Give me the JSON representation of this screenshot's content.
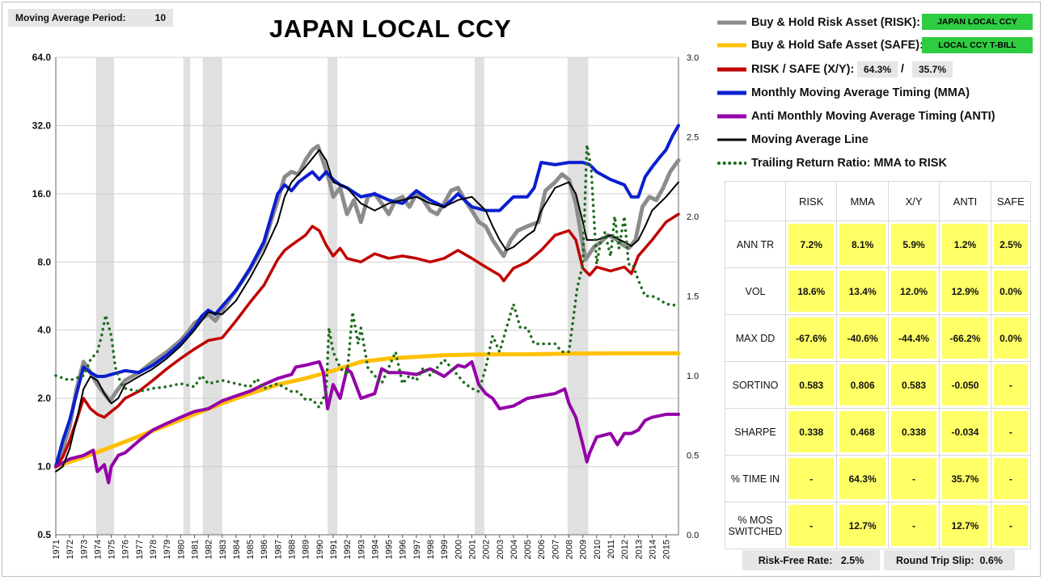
{
  "header": {
    "ma_label": "Moving Average Period:",
    "ma_value": "10",
    "title": "JAPAN LOCAL CCY"
  },
  "legend": [
    {
      "label": "Buy & Hold Risk Asset (RISK):",
      "color": "#8c8c8c",
      "style": "solid",
      "tag": "JAPAN LOCAL CCY"
    },
    {
      "label": "Buy & Hold Safe Asset (SAFE):",
      "color": "#ffc000",
      "style": "solid",
      "tag": "LOCAL CCY T-BILL"
    },
    {
      "label": "RISK / SAFE (X/Y):",
      "color": "#c00000",
      "style": "solid",
      "pct_risk": "64.3%",
      "sep": "/",
      "pct_safe": "35.7%"
    },
    {
      "label": "Monthly Moving Average Timing (MMA)",
      "color": "#0a1fcf",
      "style": "solid"
    },
    {
      "label": "Anti Monthly Moving Average Timing (ANTI)",
      "color": "#9400a8",
      "style": "solid"
    },
    {
      "label": "Moving Average Line",
      "color": "#000000",
      "style": "solid"
    },
    {
      "label": "Trailing Return Ratio: MMA to RISK",
      "color": "#1e6b1e",
      "style": "dotted"
    }
  ],
  "stats": {
    "columns": [
      "RISK",
      "MMA",
      "X/Y",
      "ANTI",
      "SAFE"
    ],
    "rows": [
      {
        "label": "ANN TR",
        "values": [
          "7.2%",
          "8.1%",
          "5.9%",
          "1.2%",
          "2.5%"
        ]
      },
      {
        "label": "VOL",
        "values": [
          "18.6%",
          "13.4%",
          "12.0%",
          "12.9%",
          "0.0%"
        ]
      },
      {
        "label": "MAX DD",
        "values": [
          "-67.6%",
          "-40.6%",
          "-44.4%",
          "-66.2%",
          "0.0%"
        ]
      },
      {
        "label": "SORTINO",
        "values": [
          "0.583",
          "0.806",
          "0.583",
          "-0.050",
          "-"
        ]
      },
      {
        "label": "SHARPE",
        "values": [
          "0.338",
          "0.468",
          "0.338",
          "-0.034",
          "-"
        ]
      },
      {
        "label": "% TIME IN",
        "values": [
          "-",
          "64.3%",
          "-",
          "35.7%",
          "-"
        ]
      },
      {
        "label": "% MOS SWITCHED",
        "values": [
          "-",
          "12.7%",
          "-",
          "12.7%",
          "-"
        ]
      }
    ]
  },
  "footer": {
    "rf_label": "Risk-Free Rate:",
    "rf_value": "2.5%",
    "slip_label": "Round Trip Slip:",
    "slip_value": "0.6%"
  },
  "chart_data": {
    "type": "line",
    "y_scale": "log2",
    "ylim": [
      0.5,
      64
    ],
    "y_ticks": [
      "0.5",
      "1.0",
      "2.0",
      "4.0",
      "8.0",
      "16.0",
      "32.0",
      "64.0"
    ],
    "y2lim": [
      0.0,
      3.0
    ],
    "y2_ticks": [
      "0.0",
      "0.5",
      "1.0",
      "1.5",
      "2.0",
      "2.5",
      "3.0"
    ],
    "x_ticks": [
      "1971",
      "1972",
      "1973",
      "1974",
      "1975",
      "1976",
      "1977",
      "1978",
      "1979",
      "1980",
      "1981",
      "1982",
      "1983",
      "1984",
      "1985",
      "1986",
      "1987",
      "1988",
      "1989",
      "1990",
      "1991",
      "1992",
      "1993",
      "1994",
      "1995",
      "1996",
      "1997",
      "1998",
      "1999",
      "2000",
      "2001",
      "2002",
      "2003",
      "2004",
      "2005",
      "2006",
      "2007",
      "2008",
      "2009",
      "2010",
      "2011",
      "2012",
      "2013",
      "2014",
      "2015"
    ],
    "xlim": [
      1971.0,
      2015.9
    ],
    "recessions": [
      [
        1973.9,
        1975.2
      ],
      [
        1980.2,
        1980.7
      ],
      [
        1981.6,
        1983.0
      ],
      [
        1990.6,
        1991.3
      ],
      [
        2001.2,
        2001.9
      ],
      [
        2007.9,
        2009.4
      ]
    ],
    "series": [
      {
        "name": "RISK",
        "color": "#8c8c8c",
        "width": 5,
        "axis": "left",
        "x": [
          1971.0,
          1971.5,
          1972.0,
          1972.5,
          1973.0,
          1973.5,
          1974.0,
          1974.5,
          1974.9,
          1975.5,
          1976.0,
          1977.0,
          1978.0,
          1979.0,
          1980.0,
          1980.5,
          1981.0,
          1982.0,
          1982.5,
          1983.0,
          1984.0,
          1985.0,
          1986.0,
          1986.5,
          1987.0,
          1987.5,
          1988.0,
          1988.5,
          1989.0,
          1989.5,
          1989.9,
          1990.3,
          1990.7,
          1991.0,
          1991.5,
          1992.0,
          1992.5,
          1993.0,
          1993.5,
          1994.0,
          1994.5,
          1995.0,
          1995.5,
          1996.0,
          1996.5,
          1997.0,
          1997.5,
          1998.0,
          1998.5,
          1999.0,
          1999.5,
          2000.0,
          2000.5,
          2001.0,
          2001.5,
          2002.0,
          2002.5,
          2003.0,
          2003.3,
          2003.8,
          2004.3,
          2005.0,
          2005.8,
          2006.3,
          2007.0,
          2007.5,
          2008.0,
          2008.5,
          2009.0,
          2009.2,
          2009.8,
          2010.3,
          2010.8,
          2011.3,
          2011.8,
          2012.3,
          2012.8,
          2013.3,
          2013.8,
          2014.3,
          2014.8,
          2015.3,
          2015.9
        ],
        "values": [
          1.0,
          1.2,
          1.5,
          2.2,
          2.9,
          2.6,
          2.3,
          2.1,
          1.95,
          2.2,
          2.4,
          2.6,
          2.9,
          3.2,
          3.6,
          3.9,
          4.3,
          4.7,
          4.4,
          4.9,
          6.0,
          7.4,
          9.5,
          12.0,
          15.0,
          19.0,
          20.0,
          19.5,
          22.5,
          25.0,
          26.0,
          22.0,
          18.5,
          15.5,
          17.0,
          13.0,
          15.0,
          12.0,
          15.5,
          16.0,
          14.5,
          13.0,
          15.0,
          15.5,
          14.0,
          16.0,
          15.0,
          13.5,
          13.0,
          14.5,
          16.5,
          17.0,
          15.0,
          13.5,
          12.0,
          11.5,
          10.0,
          9.0,
          8.5,
          10.0,
          11.0,
          11.5,
          12.0,
          16.5,
          18.0,
          19.5,
          18.5,
          14.5,
          9.5,
          8.2,
          9.3,
          9.8,
          10.5,
          10.2,
          9.6,
          9.2,
          10.0,
          14.0,
          15.5,
          15.0,
          17.0,
          20.0,
          22.5
        ]
      },
      {
        "name": "SAFE",
        "color": "#ffc000",
        "width": 5,
        "axis": "left",
        "x": [
          1971.0,
          1973.0,
          1975.0,
          1977.0,
          1979.0,
          1981.0,
          1983.0,
          1985.0,
          1987.0,
          1989.0,
          1991.0,
          1993.0,
          1995.0,
          1997.0,
          1999.0,
          2001.0,
          2003.0,
          2005.0,
          2008.0,
          2011.0,
          2015.9
        ],
        "values": [
          1.0,
          1.1,
          1.22,
          1.36,
          1.52,
          1.7,
          1.9,
          2.1,
          2.3,
          2.45,
          2.65,
          2.9,
          3.0,
          3.05,
          3.1,
          3.12,
          3.13,
          3.13,
          3.15,
          3.16,
          3.16
        ]
      },
      {
        "name": "RISK / SAFE (X/Y)",
        "color": "#c00000",
        "width": 3.5,
        "axis": "left",
        "x": [
          1971.0,
          1971.5,
          1972.0,
          1972.5,
          1973.0,
          1973.5,
          1974.0,
          1974.5,
          1975.0,
          1975.5,
          1976.0,
          1977.0,
          1978.0,
          1979.0,
          1980.0,
          1981.0,
          1982.0,
          1983.0,
          1984.0,
          1985.0,
          1986.0,
          1987.0,
          1987.5,
          1988.0,
          1989.0,
          1989.5,
          1990.0,
          1990.5,
          1991.0,
          1991.5,
          1992.0,
          1993.0,
          1994.0,
          1995.0,
          1996.0,
          1997.0,
          1998.0,
          1999.0,
          2000.0,
          2001.0,
          2002.0,
          2003.0,
          2003.3,
          2004.0,
          2005.0,
          2006.0,
          2007.0,
          2008.0,
          2008.5,
          2009.0,
          2009.5,
          2010.0,
          2011.0,
          2012.0,
          2012.5,
          2013.0,
          2014.0,
          2015.0,
          2015.9
        ],
        "values": [
          1.0,
          1.1,
          1.3,
          1.6,
          2.0,
          1.8,
          1.7,
          1.65,
          1.75,
          1.85,
          2.0,
          2.15,
          2.4,
          2.7,
          3.0,
          3.3,
          3.6,
          3.7,
          4.4,
          5.3,
          6.3,
          8.2,
          9.0,
          9.5,
          10.5,
          11.5,
          11.0,
          9.5,
          8.5,
          9.2,
          8.3,
          8.0,
          8.7,
          8.3,
          8.5,
          8.3,
          8.0,
          8.3,
          9.0,
          8.3,
          7.6,
          7.0,
          6.6,
          7.5,
          8.0,
          9.0,
          10.5,
          11.0,
          10.0,
          7.5,
          7.0,
          7.6,
          7.3,
          7.6,
          7.1,
          8.5,
          10.0,
          12.0,
          13.0
        ]
      },
      {
        "name": "MMA",
        "color": "#0a1fcf",
        "width": 4,
        "axis": "left",
        "x": [
          1971.0,
          1971.5,
          1972.0,
          1972.5,
          1973.0,
          1973.5,
          1974.0,
          1974.5,
          1975.0,
          1975.5,
          1976.0,
          1977.0,
          1978.0,
          1979.0,
          1980.0,
          1981.0,
          1981.5,
          1982.0,
          1982.5,
          1983.0,
          1984.0,
          1985.0,
          1986.0,
          1986.5,
          1987.0,
          1987.5,
          1988.0,
          1988.5,
          1989.0,
          1989.5,
          1990.0,
          1990.5,
          1991.0,
          1991.5,
          1992.0,
          1993.0,
          1994.0,
          1995.0,
          1996.0,
          1997.0,
          1998.0,
          1999.0,
          2000.0,
          2001.0,
          2002.0,
          2003.0,
          2004.0,
          2005.0,
          2005.5,
          2006.0,
          2007.0,
          2008.0,
          2009.0,
          2009.5,
          2010.0,
          2011.0,
          2012.0,
          2012.5,
          2013.0,
          2013.5,
          2014.0,
          2014.5,
          2015.0,
          2015.5,
          2015.9
        ],
        "values": [
          1.0,
          1.3,
          1.6,
          2.1,
          2.75,
          2.6,
          2.5,
          2.5,
          2.55,
          2.6,
          2.65,
          2.6,
          2.8,
          3.1,
          3.5,
          4.1,
          4.6,
          4.9,
          4.7,
          5.1,
          6.0,
          7.5,
          9.8,
          12.5,
          16.0,
          17.5,
          16.5,
          18.0,
          19.0,
          20.0,
          18.5,
          20.0,
          18.5,
          17.5,
          17.0,
          15.5,
          16.0,
          15.0,
          14.5,
          16.5,
          15.0,
          14.0,
          16.0,
          14.0,
          13.5,
          13.5,
          15.5,
          15.5,
          17.0,
          22.0,
          21.5,
          22.0,
          22.0,
          21.5,
          20.0,
          18.5,
          17.5,
          15.5,
          15.5,
          19.0,
          21.0,
          23.0,
          25.0,
          29.0,
          32.0
        ]
      },
      {
        "name": "ANTI",
        "color": "#9400a8",
        "width": 4,
        "axis": "left",
        "x": [
          1971.0,
          1972.0,
          1973.0,
          1973.7,
          1974.0,
          1974.5,
          1974.8,
          1975.0,
          1975.5,
          1976.0,
          1977.0,
          1978.0,
          1979.0,
          1980.0,
          1981.0,
          1982.0,
          1983.0,
          1984.0,
          1985.0,
          1986.0,
          1987.0,
          1988.0,
          1988.3,
          1989.0,
          1990.0,
          1990.3,
          1990.6,
          1991.0,
          1991.5,
          1992.0,
          1992.3,
          1993.0,
          1994.0,
          1994.5,
          1995.0,
          1996.0,
          1997.0,
          1998.0,
          1999.0,
          2000.0,
          2000.5,
          2001.0,
          2001.5,
          2002.0,
          2002.5,
          2003.0,
          2004.0,
          2005.0,
          2006.0,
          2007.0,
          2007.7,
          2008.0,
          2008.5,
          2009.0,
          2009.3,
          2009.5,
          2010.0,
          2011.0,
          2011.5,
          2012.0,
          2012.5,
          2013.0,
          2013.5,
          2014.0,
          2015.0,
          2015.9
        ],
        "values": [
          1.0,
          1.08,
          1.12,
          1.18,
          0.95,
          1.02,
          0.85,
          1.0,
          1.12,
          1.15,
          1.3,
          1.45,
          1.55,
          1.65,
          1.75,
          1.8,
          1.95,
          2.05,
          2.15,
          2.3,
          2.45,
          2.55,
          2.75,
          2.8,
          2.9,
          2.6,
          1.8,
          2.3,
          2.0,
          2.7,
          2.6,
          2.0,
          2.1,
          2.7,
          2.6,
          2.6,
          2.55,
          2.7,
          2.5,
          2.8,
          2.75,
          2.9,
          2.3,
          2.1,
          2.0,
          1.8,
          1.85,
          2.0,
          2.05,
          2.1,
          2.2,
          1.9,
          1.65,
          1.25,
          1.05,
          1.15,
          1.35,
          1.4,
          1.25,
          1.4,
          1.4,
          1.45,
          1.6,
          1.65,
          1.7,
          1.7
        ]
      },
      {
        "name": "Moving Average Line",
        "color": "#000000",
        "width": 2,
        "axis": "left",
        "x": [
          1971.0,
          1971.5,
          1972.0,
          1972.5,
          1973.0,
          1973.5,
          1974.0,
          1974.5,
          1975.0,
          1975.5,
          1976.0,
          1977.0,
          1978.0,
          1979.0,
          1980.0,
          1981.0,
          1982.0,
          1983.0,
          1984.0,
          1985.0,
          1986.0,
          1987.0,
          1987.5,
          1988.0,
          1989.0,
          1990.0,
          1990.5,
          1991.0,
          1991.5,
          1992.0,
          1993.0,
          1994.0,
          1995.0,
          1996.0,
          1997.0,
          1998.0,
          1999.0,
          2000.0,
          2001.0,
          2002.0,
          2002.5,
          2003.0,
          2003.5,
          2004.0,
          2005.0,
          2005.5,
          2006.0,
          2007.0,
          2008.0,
          2008.5,
          2009.0,
          2009.3,
          2010.0,
          2011.0,
          2012.0,
          2012.5,
          2013.0,
          2013.5,
          2014.0,
          2015.0,
          2015.9
        ],
        "values": [
          0.95,
          1.0,
          1.2,
          1.6,
          2.2,
          2.5,
          2.4,
          2.1,
          1.9,
          2.0,
          2.3,
          2.5,
          2.7,
          3.0,
          3.4,
          4.0,
          4.8,
          4.7,
          5.4,
          6.8,
          8.8,
          12.0,
          15.5,
          18.0,
          21.0,
          25.0,
          22.5,
          18.0,
          17.5,
          17.0,
          14.5,
          13.5,
          14.5,
          15.0,
          15.5,
          14.5,
          14.0,
          15.0,
          15.5,
          13.5,
          11.5,
          10.0,
          9.0,
          9.3,
          10.5,
          11.0,
          13.5,
          17.0,
          18.0,
          16.0,
          12.0,
          10.0,
          10.0,
          10.5,
          9.8,
          9.4,
          10.0,
          11.5,
          13.5,
          15.5,
          18.0
        ]
      },
      {
        "name": "Trailing Return Ratio: MMA to RISK",
        "color": "#1e6b1e",
        "width": 3.5,
        "axis": "right",
        "dotted": true,
        "x": [
          1971.0,
          1972.0,
          1973.0,
          1973.5,
          1974.0,
          1974.3,
          1974.6,
          1975.0,
          1975.3,
          1975.7,
          1976.0,
          1977.0,
          1978.0,
          1979.0,
          1980.0,
          1981.0,
          1981.5,
          1982.0,
          1983.0,
          1984.0,
          1985.0,
          1985.5,
          1986.0,
          1987.0,
          1988.0,
          1988.5,
          1989.0,
          1989.5,
          1990.0,
          1990.5,
          1990.7,
          1991.0,
          1991.5,
          1992.0,
          1992.4,
          1992.8,
          1993.0,
          1993.5,
          1994.0,
          1994.5,
          1995.0,
          1995.5,
          1996.0,
          1996.5,
          1997.0,
          1997.5,
          1998.0,
          1998.5,
          1999.0,
          1999.5,
          2000.0,
          2000.5,
          2001.0,
          2001.5,
          2002.0,
          2002.5,
          2003.0,
          2003.5,
          2004.0,
          2004.5,
          2005.0,
          2005.5,
          2006.0,
          2006.5,
          2007.0,
          2007.5,
          2008.0,
          2008.3,
          2008.6,
          2009.0,
          2009.3,
          2009.6,
          2010.0,
          2010.3,
          2010.6,
          2011.0,
          2011.3,
          2011.6,
          2012.0,
          2012.3,
          2012.6,
          2013.0,
          2013.5,
          2014.0,
          2014.5,
          2015.0,
          2015.9
        ],
        "values": [
          1.0,
          0.97,
          1.0,
          1.1,
          1.15,
          1.25,
          1.38,
          1.25,
          1.05,
          0.95,
          0.92,
          0.9,
          0.92,
          0.93,
          0.95,
          0.93,
          1.0,
          0.95,
          0.97,
          0.95,
          0.93,
          0.98,
          0.92,
          0.95,
          0.9,
          0.9,
          0.85,
          0.85,
          0.8,
          0.9,
          1.3,
          1.15,
          1.05,
          1.0,
          1.4,
          1.2,
          1.3,
          1.05,
          1.0,
          0.95,
          1.05,
          1.15,
          0.95,
          1.0,
          0.97,
          1.05,
          1.0,
          1.05,
          1.1,
          1.05,
          1.0,
          0.95,
          0.92,
          0.9,
          1.05,
          1.25,
          1.15,
          1.3,
          1.45,
          1.3,
          1.3,
          1.2,
          1.2,
          1.2,
          1.2,
          1.15,
          1.15,
          1.35,
          1.55,
          1.7,
          2.45,
          2.3,
          1.7,
          1.85,
          1.9,
          1.75,
          2.0,
          1.8,
          2.0,
          1.7,
          1.7,
          1.6,
          1.5,
          1.5,
          1.48,
          1.45,
          1.44
        ]
      }
    ]
  }
}
